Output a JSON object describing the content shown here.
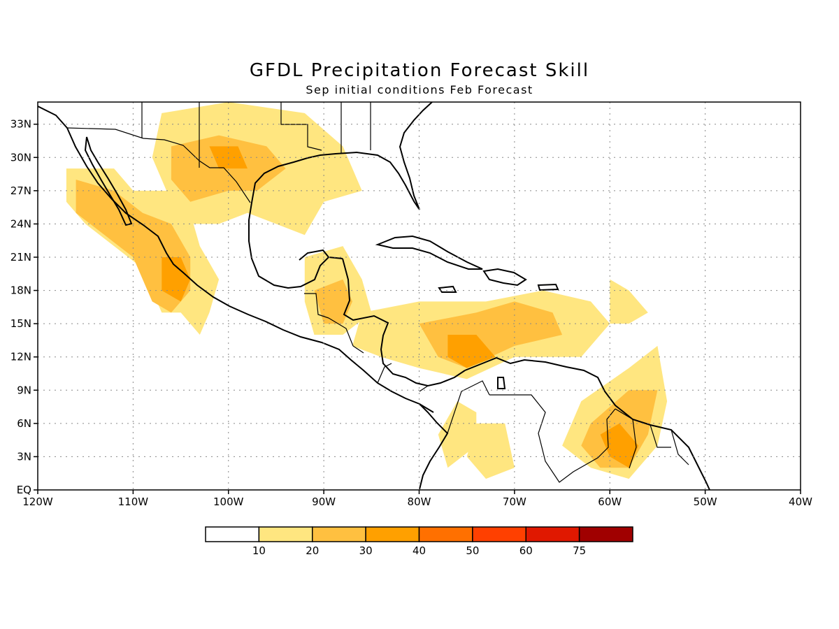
{
  "title": "GFDL Precipitation Forecast Skill",
  "subtitle": "Sep initial conditions  Feb Forecast",
  "map": {
    "lon_range": [
      -120,
      -40
    ],
    "lat_range": [
      0,
      35
    ],
    "lon_ticks": [
      {
        "value": -120,
        "label": "120W"
      },
      {
        "value": -110,
        "label": "110W"
      },
      {
        "value": -100,
        "label": "100W"
      },
      {
        "value": -90,
        "label": "90W"
      },
      {
        "value": -80,
        "label": "80W"
      },
      {
        "value": -70,
        "label": "70W"
      },
      {
        "value": -60,
        "label": "60W"
      },
      {
        "value": -50,
        "label": "50W"
      },
      {
        "value": -40,
        "label": "40W"
      }
    ],
    "lat_ticks": [
      {
        "value": 0,
        "label": "EQ"
      },
      {
        "value": 3,
        "label": "3N"
      },
      {
        "value": 6,
        "label": "6N"
      },
      {
        "value": 9,
        "label": "9N"
      },
      {
        "value": 12,
        "label": "12N"
      },
      {
        "value": 15,
        "label": "15N"
      },
      {
        "value": 18,
        "label": "18N"
      },
      {
        "value": 21,
        "label": "21N"
      },
      {
        "value": 24,
        "label": "24N"
      },
      {
        "value": 27,
        "label": "27N"
      },
      {
        "value": 30,
        "label": "30N"
      },
      {
        "value": 33,
        "label": "33N"
      }
    ],
    "grid": "dotted"
  },
  "colorbar": {
    "colors": [
      "#ffffff",
      "#ffe680",
      "#ffc040",
      "#ffa000",
      "#ff7000",
      "#ff4000",
      "#e01800",
      "#a00000"
    ],
    "labels": [
      "10",
      "20",
      "30",
      "40",
      "50",
      "60",
      "75"
    ]
  },
  "skill_regions": [
    {
      "level": 1,
      "points": [
        [
          -117,
          29
        ],
        [
          -112,
          29
        ],
        [
          -110,
          27
        ],
        [
          -106,
          27
        ],
        [
          -104,
          25
        ],
        [
          -103,
          22
        ],
        [
          -101,
          19
        ],
        [
          -102,
          16
        ],
        [
          -103,
          14
        ],
        [
          -105,
          16
        ],
        [
          -107,
          16
        ],
        [
          -109,
          20
        ],
        [
          -112,
          22
        ],
        [
          -115,
          24
        ],
        [
          -117,
          26
        ]
      ]
    },
    {
      "level": 2,
      "points": [
        [
          -116,
          28
        ],
        [
          -112,
          27
        ],
        [
          -109,
          25
        ],
        [
          -106,
          24
        ],
        [
          -104,
          21
        ],
        [
          -104,
          18
        ],
        [
          -106,
          16
        ],
        [
          -108,
          17
        ],
        [
          -110,
          21
        ],
        [
          -113,
          23
        ],
        [
          -116,
          25
        ]
      ]
    },
    {
      "level": 3,
      "points": [
        [
          -107,
          21
        ],
        [
          -105,
          21
        ],
        [
          -104,
          19
        ],
        [
          -105,
          17
        ],
        [
          -107,
          18
        ]
      ]
    },
    {
      "level": 1,
      "points": [
        [
          -107,
          34
        ],
        [
          -100,
          35
        ],
        [
          -92,
          34
        ],
        [
          -88,
          31
        ],
        [
          -86,
          27
        ],
        [
          -90,
          26
        ],
        [
          -92,
          23
        ],
        [
          -95,
          24
        ],
        [
          -98,
          25
        ],
        [
          -101,
          24
        ],
        [
          -104,
          24
        ],
        [
          -106,
          26
        ],
        [
          -108,
          30
        ]
      ]
    },
    {
      "level": 2,
      "points": [
        [
          -106,
          31
        ],
        [
          -101,
          32
        ],
        [
          -96,
          31
        ],
        [
          -94,
          29
        ],
        [
          -97,
          27
        ],
        [
          -100,
          27
        ],
        [
          -104,
          26
        ],
        [
          -106,
          28
        ]
      ]
    },
    {
      "level": 3,
      "points": [
        [
          -102,
          31
        ],
        [
          -99,
          31
        ],
        [
          -98,
          29
        ],
        [
          -101,
          29
        ]
      ]
    },
    {
      "level": 1,
      "points": [
        [
          -92,
          21
        ],
        [
          -88,
          22
        ],
        [
          -86,
          19
        ],
        [
          -85,
          16
        ],
        [
          -88,
          14
        ],
        [
          -91,
          14
        ],
        [
          -92,
          17
        ]
      ]
    },
    {
      "level": 2,
      "points": [
        [
          -91,
          18
        ],
        [
          -88,
          19
        ],
        [
          -87,
          17
        ],
        [
          -88,
          15
        ],
        [
          -90,
          15
        ]
      ]
    },
    {
      "level": 1,
      "points": [
        [
          -86,
          16
        ],
        [
          -80,
          17
        ],
        [
          -73,
          17
        ],
        [
          -67,
          18
        ],
        [
          -62,
          17
        ],
        [
          -60,
          15
        ],
        [
          -63,
          12
        ],
        [
          -70,
          12
        ],
        [
          -75,
          10
        ],
        [
          -80,
          11
        ],
        [
          -84,
          12
        ],
        [
          -87,
          13
        ]
      ]
    },
    {
      "level": 2,
      "points": [
        [
          -80,
          15
        ],
        [
          -74,
          16
        ],
        [
          -70,
          17
        ],
        [
          -66,
          16
        ],
        [
          -65,
          14
        ],
        [
          -70,
          13
        ],
        [
          -75,
          11
        ],
        [
          -78,
          12
        ]
      ]
    },
    {
      "level": 3,
      "points": [
        [
          -77,
          14
        ],
        [
          -74,
          14
        ],
        [
          -72,
          12
        ],
        [
          -75,
          11
        ],
        [
          -77,
          12
        ]
      ]
    },
    {
      "level": 1,
      "points": [
        [
          -76,
          8
        ],
        [
          -74,
          7
        ],
        [
          -74,
          4
        ],
        [
          -77,
          2
        ],
        [
          -78,
          5
        ]
      ]
    },
    {
      "level": 1,
      "points": [
        [
          -74,
          6
        ],
        [
          -71,
          6
        ],
        [
          -70,
          2
        ],
        [
          -73,
          1
        ],
        [
          -75,
          3
        ]
      ]
    },
    {
      "level": 1,
      "points": [
        [
          -63,
          8
        ],
        [
          -58,
          11
        ],
        [
          -55,
          13
        ],
        [
          -54,
          8
        ],
        [
          -55,
          4
        ],
        [
          -58,
          1
        ],
        [
          -62,
          2
        ],
        [
          -65,
          4
        ]
      ]
    },
    {
      "level": 2,
      "points": [
        [
          -62,
          6
        ],
        [
          -58,
          9
        ],
        [
          -55,
          9
        ],
        [
          -56,
          5
        ],
        [
          -58,
          2
        ],
        [
          -61,
          2
        ],
        [
          -63,
          4
        ]
      ]
    },
    {
      "level": 3,
      "points": [
        [
          -61,
          5
        ],
        [
          -59,
          6
        ],
        [
          -57,
          4
        ],
        [
          -58,
          2
        ],
        [
          -60,
          3
        ]
      ]
    },
    {
      "level": 1,
      "points": [
        [
          -60,
          19
        ],
        [
          -58,
          18
        ],
        [
          -56,
          16
        ],
        [
          -58,
          15
        ],
        [
          -60,
          15
        ]
      ]
    }
  ]
}
